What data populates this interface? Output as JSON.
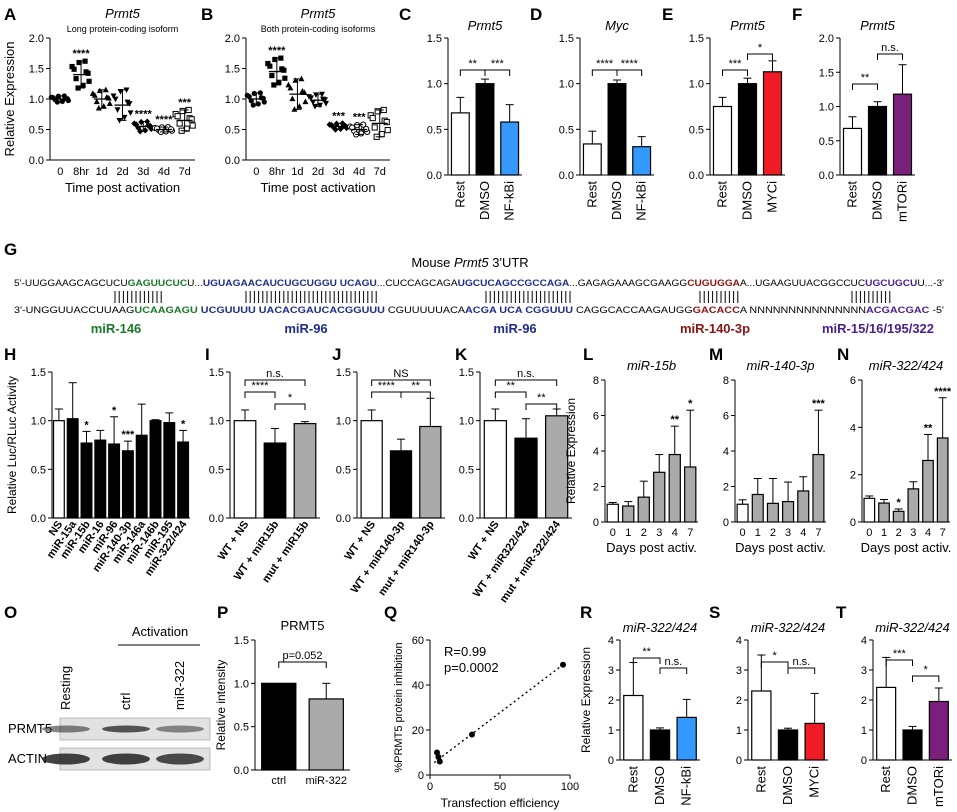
{
  "colors": {
    "black": "#000000",
    "white": "#ffffff",
    "blue": "#3399ff",
    "red": "#ee1c24",
    "purple": "#7b1f7d",
    "grey": "#aaaaaa",
    "green": "#1a7a2a",
    "navy": "#1f2d8a",
    "maroon": "#8b1515",
    "violet": "#4a1f8f"
  },
  "chart_data": [
    {
      "panel": "A",
      "type": "scatter",
      "title": "Prmt5",
      "subtitle": "Long protein-coding isoform",
      "ylabel": "Relative Expression",
      "xlabel": "Time post activation",
      "categories": [
        "0",
        "8hr",
        "1d",
        "2d",
        "3d",
        "4d",
        "7d"
      ],
      "ylim": [
        0,
        2
      ],
      "yticks": [
        "0.0",
        "0.5",
        "1.0",
        "1.5",
        "2.0"
      ],
      "means": [
        1.0,
        1.4,
        1.0,
        0.9,
        0.55,
        0.5,
        0.65
      ],
      "sd": [
        0.05,
        0.22,
        0.15,
        0.25,
        0.08,
        0.04,
        0.17
      ],
      "sig": [
        "",
        "****",
        "",
        "",
        "****",
        "****",
        "***"
      ],
      "markers": [
        "circle",
        "square",
        "triangle",
        "invtriangle",
        "diamond",
        "circleopen",
        "squareopen"
      ]
    },
    {
      "panel": "B",
      "type": "scatter",
      "title": "Prmt5",
      "subtitle": "Both protein-coding isoforms",
      "xlabel": "Time post activation",
      "categories": [
        "0",
        "8hr",
        "1d",
        "2d",
        "3d",
        "4d",
        "7d"
      ],
      "ylim": [
        0,
        2
      ],
      "yticks": [
        "0.0",
        "0.5",
        "1.0",
        "1.5",
        "2.0"
      ],
      "means": [
        1.0,
        1.45,
        1.08,
        0.98,
        0.55,
        0.5,
        0.6
      ],
      "sd": [
        0.1,
        0.22,
        0.25,
        0.1,
        0.05,
        0.08,
        0.22
      ],
      "sig": [
        "",
        "****",
        "",
        "",
        "***",
        "***",
        ""
      ],
      "markers": [
        "circle",
        "square",
        "triangle",
        "invtriangle",
        "diamond",
        "circleopen",
        "squareopen"
      ]
    },
    {
      "panel": "C",
      "type": "bar",
      "title": "Prmt5",
      "categories": [
        "Rest",
        "DMSO",
        "NF-kBi"
      ],
      "values": [
        0.68,
        1.0,
        0.58
      ],
      "err": [
        0.17,
        0.05,
        0.19
      ],
      "fills": [
        "white",
        "black",
        "blue"
      ],
      "ylim": [
        0,
        1.5
      ],
      "yticks": [
        "0.0",
        "0.5",
        "1.0",
        "1.5"
      ],
      "brackets": [
        {
          "a": 0,
          "b": 1,
          "label": "**"
        },
        {
          "a": 1,
          "b": 2,
          "label": "***"
        }
      ]
    },
    {
      "panel": "D",
      "type": "bar",
      "title": "Myc",
      "categories": [
        "Rest",
        "DMSO",
        "NF-kBi"
      ],
      "values": [
        0.34,
        1.0,
        0.31
      ],
      "err": [
        0.14,
        0.04,
        0.11
      ],
      "fills": [
        "white",
        "black",
        "blue"
      ],
      "ylim": [
        0,
        1.5
      ],
      "yticks": [
        "0.0",
        "0.5",
        "1.0",
        "1.5"
      ],
      "brackets": [
        {
          "a": 0,
          "b": 1,
          "label": "****"
        },
        {
          "a": 1,
          "b": 2,
          "label": "****"
        }
      ]
    },
    {
      "panel": "E",
      "type": "bar",
      "title": "Prmt5",
      "categories": [
        "Rest",
        "DMSO",
        "MYCi"
      ],
      "values": [
        0.75,
        1.0,
        1.13
      ],
      "err": [
        0.1,
        0.06,
        0.12
      ],
      "fills": [
        "white",
        "black",
        "red"
      ],
      "ylim": [
        0,
        1.5
      ],
      "yticks": [
        "0.0",
        "0.5",
        "1.0",
        "1.5"
      ],
      "brackets": [
        {
          "a": 0,
          "b": 1,
          "label": "***"
        },
        {
          "a": 1,
          "b": 2,
          "label": "*"
        }
      ]
    },
    {
      "panel": "F",
      "type": "bar",
      "title": "Prmt5",
      "categories": [
        "Rest",
        "DMSO",
        "mTORi"
      ],
      "values": [
        0.68,
        1.0,
        1.18
      ],
      "err": [
        0.17,
        0.07,
        0.43
      ],
      "fills": [
        "white",
        "black",
        "purple"
      ],
      "ylim": [
        0,
        2
      ],
      "yticks": [
        "0.0",
        "0.5",
        "1.0",
        "1.5",
        "2.0"
      ],
      "brackets": [
        {
          "a": 0,
          "b": 1,
          "label": "**"
        },
        {
          "a": 1,
          "b": 2,
          "label": "n.s."
        }
      ]
    },
    {
      "panel": "H",
      "type": "bar",
      "ylabel": "Relative Luc/RLuc Activity",
      "categories": [
        "NS",
        "miR-15a",
        "miR-15b",
        "miR-16",
        "miR-96",
        "miR-140-3p",
        "miR-146a",
        "miR-146b",
        "miR-195",
        "miR-322/424"
      ],
      "values": [
        1.0,
        1.02,
        0.77,
        0.8,
        0.76,
        0.69,
        0.85,
        1.0,
        0.98,
        0.78
      ],
      "err": [
        0.12,
        0.37,
        0.12,
        0.1,
        0.28,
        0.1,
        0.32,
        0.01,
        0.1,
        0.12
      ],
      "fills": [
        "white",
        "black",
        "black",
        "black",
        "black",
        "black",
        "black",
        "black",
        "black",
        "black"
      ],
      "sig": [
        "",
        "",
        "*",
        "",
        "*",
        "***",
        "",
        "",
        "",
        "*"
      ],
      "ylim": [
        0,
        1.5
      ],
      "yticks": [
        "0.0",
        "0.5",
        "1.0",
        "1.5"
      ]
    },
    {
      "panel": "I",
      "type": "bar",
      "categories": [
        "WT + NS",
        "WT + miR15b",
        "mut + miR15b"
      ],
      "values": [
        1.0,
        0.77,
        0.97
      ],
      "err": [
        0.11,
        0.15,
        0.02
      ],
      "fills": [
        "white",
        "black",
        "grey"
      ],
      "ylim": [
        0,
        1.5
      ],
      "yticks": [
        "0.0",
        "0.5",
        "1.0",
        "1.5"
      ],
      "brackets": [
        {
          "a": 0,
          "b": 2,
          "label": "n.s.",
          "level": 2
        },
        {
          "a": 0,
          "b": 1,
          "label": "****",
          "level": 1
        },
        {
          "a": 1,
          "b": 2,
          "label": "*",
          "level": 0
        }
      ]
    },
    {
      "panel": "J",
      "type": "bar",
      "categories": [
        "WT + NS",
        "WT + miR140-3p",
        "mut + miR140-3p"
      ],
      "values": [
        1.0,
        0.69,
        0.94
      ],
      "err": [
        0.11,
        0.12,
        0.29
      ],
      "fills": [
        "white",
        "black",
        "grey"
      ],
      "ylim": [
        0,
        1.5
      ],
      "yticks": [
        "0.0",
        "0.5",
        "1.0",
        "1.5"
      ],
      "brackets": [
        {
          "a": 0,
          "b": 2,
          "label": "NS",
          "level": 2
        },
        {
          "a": 0,
          "b": 1,
          "label": "****",
          "level": 1
        },
        {
          "a": 1,
          "b": 2,
          "label": "**",
          "level": 1
        }
      ]
    },
    {
      "panel": "K",
      "type": "bar",
      "categories": [
        "WT + NS",
        "WT + miR322/424",
        "mut + miR-322/424"
      ],
      "values": [
        1.0,
        0.82,
        1.05
      ],
      "err": [
        0.12,
        0.2,
        0.07
      ],
      "fills": [
        "white",
        "black",
        "grey"
      ],
      "ylim": [
        0,
        1.5
      ],
      "yticks": [
        "0.0",
        "0.5",
        "1.0",
        "1.5"
      ],
      "brackets": [
        {
          "a": 0,
          "b": 2,
          "label": "n.s.",
          "level": 2
        },
        {
          "a": 0,
          "b": 1,
          "label": "**",
          "level": 1
        },
        {
          "a": 1,
          "b": 2,
          "label": "**",
          "level": 0
        }
      ]
    },
    {
      "panel": "L",
      "type": "bar",
      "title": "miR-15b",
      "ylabel": "Relative Expression",
      "xlabel": "Days post activ.",
      "categories": [
        "0",
        "1",
        "2",
        "3",
        "4",
        "7"
      ],
      "values": [
        1.0,
        0.9,
        1.4,
        2.8,
        3.8,
        3.1
      ],
      "err": [
        0.1,
        0.25,
        0.9,
        1.0,
        1.6,
        3.2
      ],
      "fills": [
        "white",
        "grey",
        "grey",
        "grey",
        "grey",
        "grey"
      ],
      "sig": [
        "",
        "",
        "",
        "",
        "**",
        "*"
      ],
      "ylim": [
        0,
        8
      ],
      "yticks": [
        "0",
        "2",
        "4",
        "6",
        "8"
      ]
    },
    {
      "panel": "M",
      "type": "bar",
      "title": "miR-140-3p",
      "xlabel": "Days post activ.",
      "categories": [
        "0",
        "1",
        "2",
        "3",
        "4",
        "7"
      ],
      "values": [
        1.0,
        1.55,
        1.05,
        1.15,
        1.75,
        3.8
      ],
      "err": [
        0.25,
        0.9,
        1.4,
        1.1,
        0.8,
        2.5
      ],
      "fills": [
        "white",
        "grey",
        "grey",
        "grey",
        "grey",
        "grey"
      ],
      "sig": [
        "",
        "",
        "",
        "",
        "",
        "***"
      ],
      "ylim": [
        0,
        8
      ],
      "yticks": [
        "0",
        "2",
        "4",
        "6",
        "8"
      ]
    },
    {
      "panel": "N",
      "type": "bar",
      "title": "miR-322/424",
      "xlabel": "Days post activ.",
      "categories": [
        "0",
        "1",
        "2",
        "3",
        "4",
        "7"
      ],
      "values": [
        1.0,
        0.8,
        0.45,
        1.4,
        2.6,
        3.55
      ],
      "err": [
        0.1,
        0.15,
        0.1,
        0.3,
        1.1,
        1.7
      ],
      "fills": [
        "white",
        "grey",
        "grey",
        "grey",
        "grey",
        "grey"
      ],
      "sig": [
        "",
        "",
        "*",
        "",
        "**",
        "****"
      ],
      "ylim": [
        0,
        6
      ],
      "yticks": [
        "0",
        "2",
        "4",
        "6"
      ]
    },
    {
      "panel": "P",
      "type": "bar",
      "title": "PRMT5",
      "ylabel": "Relative intensity",
      "categories": [
        "ctrl",
        "miR-322"
      ],
      "values": [
        1.0,
        0.82
      ],
      "err": [
        0.0,
        0.18
      ],
      "fills": [
        "black",
        "grey"
      ],
      "ylim": [
        0,
        1.5
      ],
      "yticks": [
        "0.0",
        "0.5",
        "1.0",
        "1.5"
      ],
      "brackets": [
        {
          "a": 0,
          "b": 1,
          "label": "p=0.052"
        }
      ]
    },
    {
      "panel": "Q",
      "type": "scatter",
      "ylabel": "%PRMT5 protein inhibition",
      "xlabel": "Transfection efficiency",
      "x": [
        5,
        6,
        7,
        30,
        95
      ],
      "y": [
        10,
        8,
        6,
        18,
        49
      ],
      "xlim": [
        0,
        100
      ],
      "ylim": [
        0,
        60
      ],
      "xticks": [
        "0",
        "50",
        "100"
      ],
      "yticks": [
        "0",
        "20",
        "40",
        "60"
      ],
      "annotation": [
        "R=0.99",
        "p=0.0002"
      ]
    },
    {
      "panel": "R",
      "type": "bar",
      "title": "miR-322/424",
      "ylabel": "Relative Expression",
      "categories": [
        "Rest",
        "DMSO",
        "NF-kBi"
      ],
      "values": [
        2.15,
        1.0,
        1.42
      ],
      "err": [
        1.1,
        0.07,
        0.6
      ],
      "fills": [
        "white",
        "black",
        "blue"
      ],
      "ylim": [
        0,
        4
      ],
      "yticks": [
        "0",
        "1",
        "2",
        "3",
        "4"
      ],
      "brackets": [
        {
          "a": 0,
          "b": 1,
          "label": "**"
        },
        {
          "a": 1,
          "b": 2,
          "label": "n.s."
        }
      ]
    },
    {
      "panel": "S",
      "type": "bar",
      "title": "miR-322/424",
      "categories": [
        "Rest",
        "DMSO",
        "MYCi"
      ],
      "values": [
        2.3,
        1.0,
        1.22
      ],
      "err": [
        1.2,
        0.06,
        1.0
      ],
      "fills": [
        "white",
        "black",
        "red"
      ],
      "ylim": [
        0,
        4
      ],
      "yticks": [
        "0",
        "1",
        "2",
        "3",
        "4"
      ],
      "brackets": [
        {
          "a": 0,
          "b": 1,
          "label": "*"
        },
        {
          "a": 1,
          "b": 2,
          "label": "n.s."
        }
      ]
    },
    {
      "panel": "T",
      "type": "bar",
      "title": "miR-322/424",
      "categories": [
        "Rest",
        "DMSO",
        "mTORi"
      ],
      "values": [
        2.42,
        1.0,
        1.95
      ],
      "err": [
        1.0,
        0.12,
        0.45
      ],
      "fills": [
        "white",
        "black",
        "purple"
      ],
      "ylim": [
        0,
        4
      ],
      "yticks": [
        "0",
        "1",
        "2",
        "3",
        "4"
      ],
      "brackets": [
        {
          "a": 0,
          "b": 1,
          "label": "***"
        },
        {
          "a": 1,
          "b": 2,
          "label": "*"
        }
      ]
    }
  ],
  "panel_g": {
    "title_prefix": "Mouse ",
    "title_gene": "Prmt5",
    "title_suffix": " 3'UTR",
    "top": [
      {
        "t": "5'-UUGGAAGCAGCUCU",
        "c": "black"
      },
      {
        "t": "GAGUUCUC",
        "c": "green"
      },
      {
        "t": "U...",
        "c": "black"
      },
      {
        "t": "UGUAGAACAUCUGCUGGU UCAGU",
        "c": "navy"
      },
      {
        "t": "...CUCCAGCAGA",
        "c": "black"
      },
      {
        "t": "UGCUCAGCCGCCAGA",
        "c": "navy"
      },
      {
        "t": "...GAGAGAAAGCGAAGG",
        "c": "black"
      },
      {
        "t": "CUGUGGA",
        "c": "maroon"
      },
      {
        "t": "A...UGAAGUUACGGCCUC",
        "c": "black"
      },
      {
        "t": "UGCUGCU",
        "c": "violet"
      },
      {
        "t": "U...-3'",
        "c": "black"
      }
    ],
    "bottom": [
      {
        "t": "3'-UNGGUUACCUUAAG",
        "c": "black"
      },
      {
        "t": "UCAAGAGU",
        "c": "green"
      },
      {
        "t": "    ",
        "c": "black"
      },
      {
        "t": "UCGUUUU UACACGAUCACGGUUU",
        "c": "navy"
      },
      {
        "t": "   CGUUUUUACA",
        "c": "black"
      },
      {
        "t": "ACGA UCA  CGGUUU",
        "c": "navy"
      },
      {
        "t": "   CAGGCACCAAGAUGG",
        "c": "black"
      },
      {
        "t": "GACACC",
        "c": "maroon"
      },
      {
        "t": "A     NNNNNNNNNNNNNNN",
        "c": "black"
      },
      {
        "t": "ACGACGAC",
        "c": "violet"
      },
      {
        "t": " -5'",
        "c": "black"
      }
    ],
    "mirs": [
      {
        "name": "miR-146",
        "c": "green"
      },
      {
        "name": "miR-96",
        "c": "navy"
      },
      {
        "name": "miR-96",
        "c": "navy"
      },
      {
        "name": "miR-140-3p",
        "c": "maroon"
      },
      {
        "name": "miR-15/16/195/322",
        "c": "violet"
      }
    ]
  },
  "panel_o": {
    "activation": "Activation",
    "lanes": [
      "Resting",
      "ctrl",
      "miR-322"
    ],
    "rows": [
      "PRMT5",
      "ACTIN"
    ]
  }
}
